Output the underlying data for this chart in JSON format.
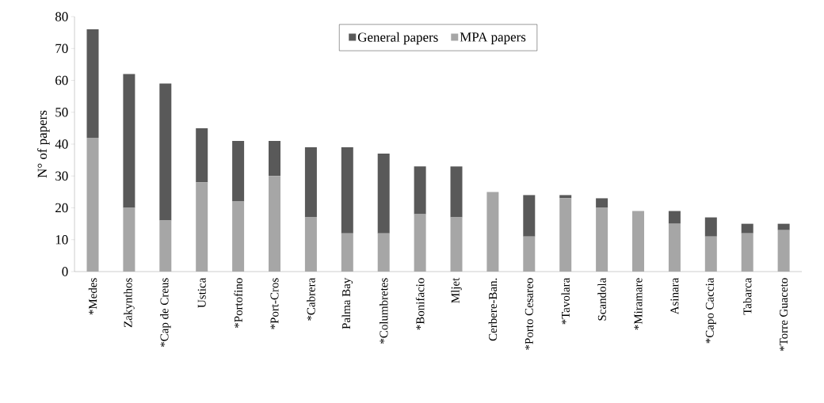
{
  "chart_data": {
    "type": "bar",
    "stacked": true,
    "ylabel": "N° of papers",
    "categories": [
      "*Medes",
      "Zakynthos",
      "*Cap de Creus",
      "Ustica",
      "*Portofino",
      "*Port-Cros",
      "*Cabrera",
      "Palma Bay",
      "*Columbretes",
      "*Bonifacio",
      "Mljet",
      "Cerbere-Ban.",
      "*Porto Cesareo",
      "*Tavolara",
      "Scandola",
      "*Miramare",
      "Asinara",
      "*Capo Caccia",
      "Tabarca",
      "*Torre Guaceto"
    ],
    "series": [
      {
        "name": "MPA papers",
        "color": "#a6a6a6",
        "values": [
          42,
          20,
          16,
          28,
          22,
          30,
          17,
          12,
          12,
          18,
          17,
          25,
          11,
          23,
          20,
          19,
          15,
          11,
          12,
          13
        ]
      },
      {
        "name": "General papers",
        "color": "#595959",
        "values": [
          34,
          42,
          43,
          17,
          19,
          11,
          22,
          27,
          25,
          15,
          16,
          0,
          13,
          1,
          3,
          0,
          4,
          6,
          3,
          2
        ]
      }
    ],
    "ylim": [
      0,
      80
    ],
    "yticks": [
      0,
      10,
      20,
      30,
      40,
      50,
      60,
      70,
      80
    ],
    "legend": "top"
  }
}
